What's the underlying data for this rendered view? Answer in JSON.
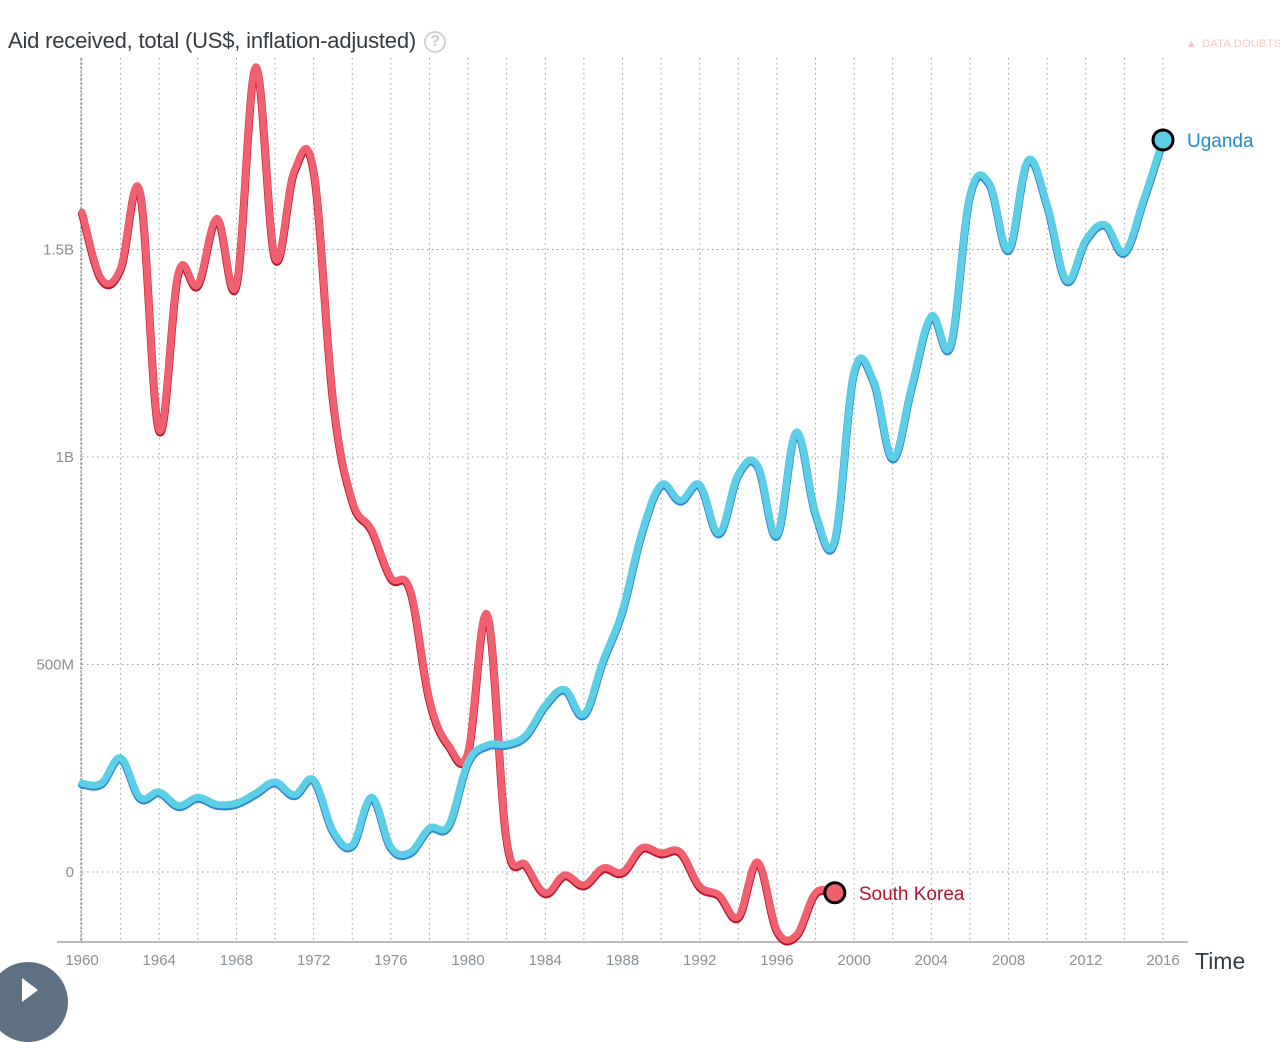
{
  "header": {
    "title": "Aid received, total (US$, inflation-adjusted)",
    "help_icon": "question-circle-icon",
    "help_glyph": "?",
    "data_doubts_label": "DATA DOUBTS",
    "data_doubts_icon": "warning-triangle-icon"
  },
  "controls": {
    "play_icon": "play-icon"
  },
  "chart_data": {
    "type": "line",
    "title": "Aid received, total (US$, inflation-adjusted)",
    "xlabel": "Time",
    "ylabel": "Aid received, total (US$, inflation-adjusted)",
    "xlim": [
      1960,
      2016
    ],
    "ylim": [
      -200000000,
      2000000000
    ],
    "grid": true,
    "x_ticks": [
      1960,
      1964,
      1968,
      1972,
      1976,
      1980,
      1984,
      1988,
      1992,
      1996,
      2000,
      2004,
      2008,
      2012,
      2016
    ],
    "x_tick_labels": [
      "1960",
      "1964",
      "1968",
      "1972",
      "1976",
      "1980",
      "1984",
      "1988",
      "1992",
      "1996",
      "2000",
      "2004",
      "2008",
      "2012",
      "2016"
    ],
    "y_ticks": [
      0,
      500000000,
      1000000000,
      1500000000
    ],
    "y_tick_labels": [
      "0",
      "500M",
      "1B",
      "1.5B"
    ],
    "legend": "inline-end-labels",
    "series": [
      {
        "name": "South Korea",
        "color": "#f0606f",
        "edge_color": "#c0102b",
        "label_color": "#b5132f",
        "x": [
          1960,
          1961,
          1962,
          1963,
          1964,
          1965,
          1966,
          1967,
          1968,
          1969,
          1970,
          1971,
          1972,
          1973,
          1974,
          1975,
          1976,
          1977,
          1978,
          1979,
          1980,
          1981,
          1982,
          1983,
          1984,
          1985,
          1986,
          1987,
          1988,
          1989,
          1990,
          1991,
          1992,
          1993,
          1994,
          1995,
          1996,
          1997,
          1998,
          1999
        ],
        "values": [
          1590000000,
          1430000000,
          1455000000,
          1640000000,
          1065000000,
          1445000000,
          1415000000,
          1575000000,
          1415000000,
          1940000000,
          1480000000,
          1690000000,
          1690000000,
          1140000000,
          895000000,
          825000000,
          710000000,
          680000000,
          415000000,
          305000000,
          290000000,
          620000000,
          77000000,
          17000000,
          -50000000,
          -7000000,
          -31000000,
          10000000,
          0,
          58000000,
          46000000,
          48000000,
          -34000000,
          -55000000,
          -108000000,
          24000000,
          -140000000,
          -152000000,
          -50000000,
          -50000000
        ]
      },
      {
        "name": "Uganda",
        "color": "#5ccfe6",
        "edge_color": "#2d86d6",
        "label_color": "#1a8ecb",
        "x": [
          1960,
          1961,
          1962,
          1963,
          1964,
          1965,
          1966,
          1967,
          1968,
          1969,
          1970,
          1971,
          1972,
          1973,
          1974,
          1975,
          1976,
          1977,
          1978,
          1979,
          1980,
          1981,
          1982,
          1983,
          1984,
          1985,
          1986,
          1987,
          1988,
          1989,
          1990,
          1991,
          1992,
          1993,
          1994,
          1995,
          1996,
          1997,
          1998,
          1999,
          2000,
          2001,
          2002,
          2003,
          2004,
          2005,
          2006,
          2007,
          2008,
          2009,
          2010,
          2011,
          2012,
          2013,
          2014,
          2015,
          2016
        ],
        "values": [
          214000000,
          214000000,
          275000000,
          180000000,
          193000000,
          160000000,
          180000000,
          163000000,
          166000000,
          190000000,
          217000000,
          186000000,
          222000000,
          100000000,
          65000000,
          180000000,
          60000000,
          48000000,
          106000000,
          113000000,
          265000000,
          306000000,
          308000000,
          330000000,
          402000000,
          440000000,
          380000000,
          510000000,
          630000000,
          817000000,
          933000000,
          896000000,
          933000000,
          817000000,
          959000000,
          980000000,
          812000000,
          1060000000,
          865000000,
          800000000,
          1205000000,
          1185000000,
          998000000,
          1173000000,
          1340000000,
          1270000000,
          1630000000,
          1660000000,
          1500000000,
          1715000000,
          1607000000,
          1426000000,
          1523000000,
          1560000000,
          1494000000,
          1620000000,
          1764000000
        ]
      }
    ]
  }
}
